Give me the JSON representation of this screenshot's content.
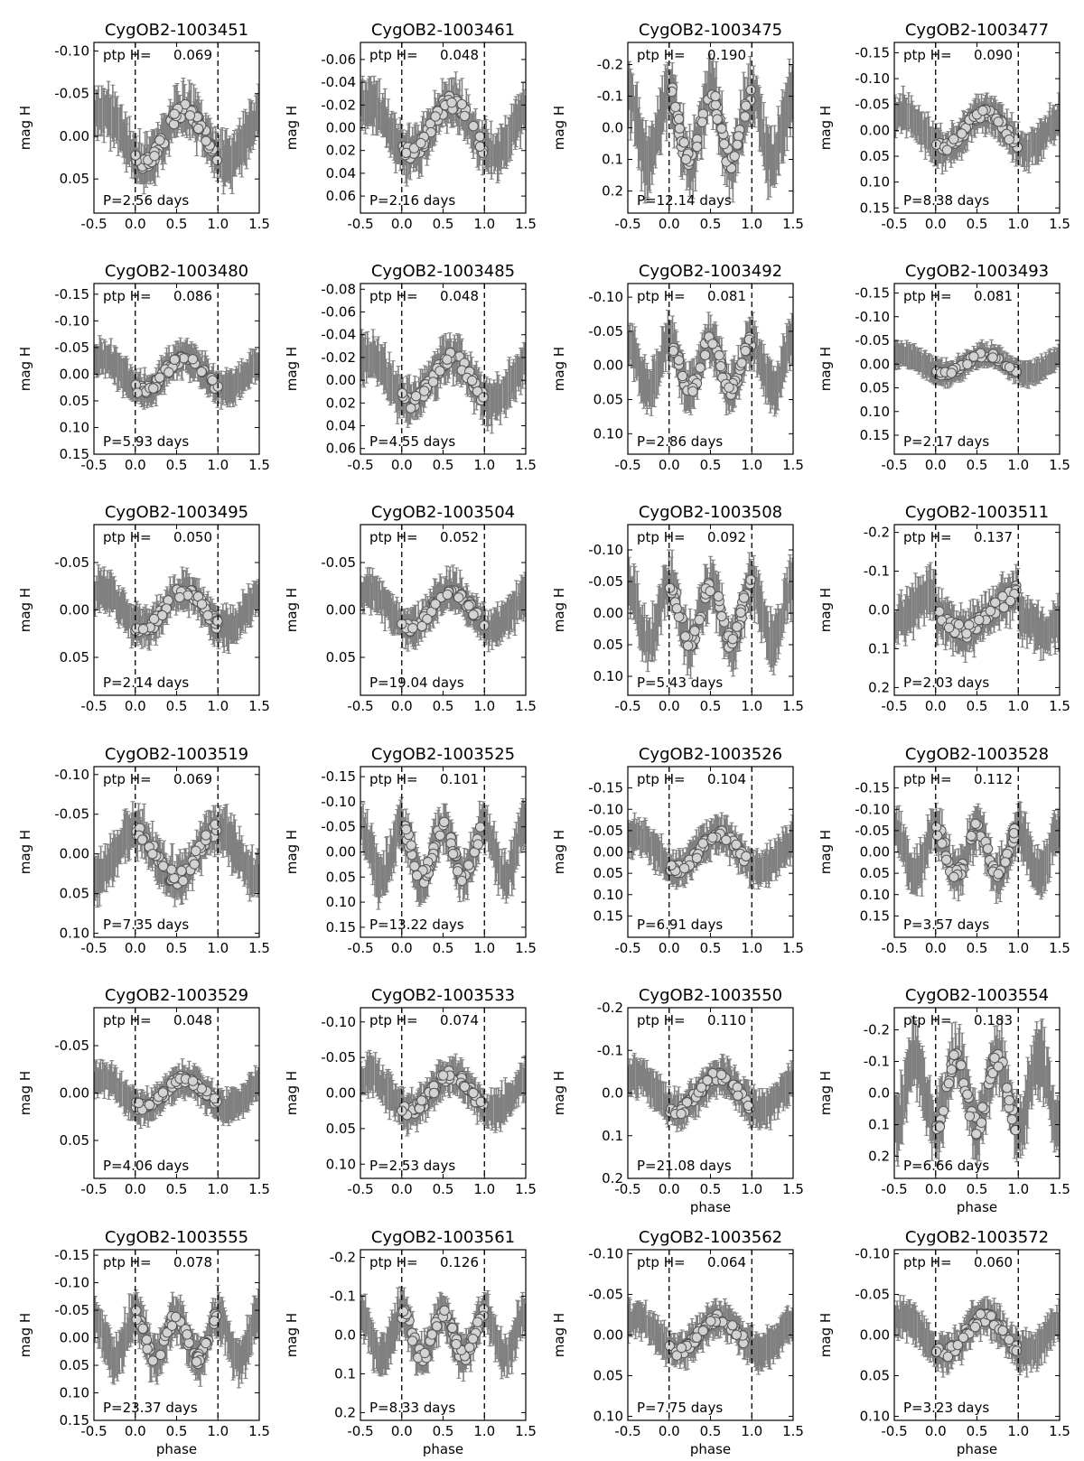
{
  "chart_data": [
    {
      "title": "CygOB2-1003451",
      "type": "scatter",
      "xlabel": "",
      "ylabel": "mag H",
      "ptp_label": "ptp H=",
      "ptp": "0.069",
      "period_label": "P=2.56 days",
      "ylim": [
        0.09,
        -0.11
      ],
      "yticks": [
        "-0.10",
        "-0.05",
        "0.00",
        "0.05"
      ],
      "ytick_values": [
        -0.1,
        -0.05,
        0.0,
        0.05
      ],
      "amplitude": 0.03,
      "shape": "sine1"
    },
    {
      "title": "CygOB2-1003461",
      "type": "scatter",
      "xlabel": "",
      "ylabel": "mag H",
      "ptp_label": "ptp H=",
      "ptp": "0.048",
      "period_label": "P=2.16 days",
      "ylim": [
        0.075,
        -0.075
      ],
      "yticks": [
        "-0.06",
        "-0.04",
        "-0.02",
        "0.00",
        "0.02",
        "0.04",
        "0.06"
      ],
      "ytick_values": [
        -0.06,
        -0.04,
        -0.02,
        0.0,
        0.02,
        0.04,
        0.06
      ],
      "amplitude": 0.022,
      "shape": "sine1"
    },
    {
      "title": "CygOB2-1003475",
      "type": "scatter",
      "xlabel": "",
      "ylabel": "mag H",
      "ptp_label": "ptp H=",
      "ptp": "0.190",
      "period_label": "P=12.14 days",
      "ylim": [
        0.27,
        -0.27
      ],
      "yticks": [
        "-0.2",
        "-0.1",
        "0.0",
        "0.1",
        "0.2"
      ],
      "ytick_values": [
        -0.2,
        -0.1,
        0.0,
        0.1,
        0.2
      ],
      "amplitude": 0.11,
      "shape": "eb"
    },
    {
      "title": "CygOB2-1003477",
      "type": "scatter",
      "xlabel": "",
      "ylabel": "mag H",
      "ptp_label": "ptp H=",
      "ptp": "0.090",
      "period_label": "P=8.38 days",
      "ylim": [
        0.16,
        -0.17
      ],
      "yticks": [
        "-0.15",
        "-0.10",
        "-0.05",
        "0.00",
        "0.05",
        "0.10",
        "0.15"
      ],
      "ytick_values": [
        -0.15,
        -0.1,
        -0.05,
        0.0,
        0.05,
        0.1,
        0.15
      ],
      "amplitude": 0.035,
      "shape": "sine1"
    },
    {
      "title": "CygOB2-1003480",
      "type": "scatter",
      "xlabel": "",
      "ylabel": "mag H",
      "ptp_label": "ptp H=",
      "ptp": "0.086",
      "period_label": "P=5.93 days",
      "ylim": [
        0.15,
        -0.17
      ],
      "yticks": [
        "-0.15",
        "-0.10",
        "-0.05",
        "0.00",
        "0.05",
        "0.10",
        "0.15"
      ],
      "ytick_values": [
        -0.15,
        -0.1,
        -0.05,
        0.0,
        0.05,
        0.1,
        0.15
      ],
      "amplitude": 0.03,
      "shape": "sine1"
    },
    {
      "title": "CygOB2-1003485",
      "type": "scatter",
      "xlabel": "",
      "ylabel": "mag H",
      "ptp_label": "ptp H=",
      "ptp": "0.048",
      "period_label": "P=4.55 days",
      "ylim": [
        0.065,
        -0.085
      ],
      "yticks": [
        "-0.08",
        "-0.06",
        "-0.04",
        "-0.02",
        "0.00",
        "0.02",
        "0.04",
        "0.06"
      ],
      "ytick_values": [
        -0.08,
        -0.06,
        -0.04,
        -0.02,
        0.0,
        0.02,
        0.04,
        0.06
      ],
      "amplitude": 0.02,
      "shape": "sine1"
    },
    {
      "title": "CygOB2-1003492",
      "type": "scatter",
      "xlabel": "",
      "ylabel": "mag H",
      "ptp_label": "ptp H=",
      "ptp": "0.081",
      "period_label": "P=2.86 days",
      "ylim": [
        0.13,
        -0.12
      ],
      "yticks": [
        "-0.10",
        "-0.05",
        "0.00",
        "0.05",
        "0.10"
      ],
      "ytick_values": [
        -0.1,
        -0.05,
        0.0,
        0.05,
        0.1
      ],
      "amplitude": 0.035,
      "shape": "eb"
    },
    {
      "title": "CygOB2-1003493",
      "type": "scatter",
      "xlabel": "",
      "ylabel": "mag H",
      "ptp_label": "ptp H=",
      "ptp": "0.081",
      "period_label": "P=2.17 days",
      "ylim": [
        0.19,
        -0.17
      ],
      "yticks": [
        "-0.15",
        "-0.10",
        "-0.05",
        "0.00",
        "0.05",
        "0.10",
        "0.15"
      ],
      "ytick_values": [
        -0.15,
        -0.1,
        -0.05,
        0.0,
        0.05,
        0.1,
        0.15
      ],
      "amplitude": 0.02,
      "shape": "sine1"
    },
    {
      "title": "CygOB2-1003495",
      "type": "scatter",
      "xlabel": "",
      "ylabel": "mag H",
      "ptp_label": "ptp H=",
      "ptp": "0.050",
      "period_label": "P=2.14 days",
      "ylim": [
        0.09,
        -0.09
      ],
      "yticks": [
        "-0.05",
        "0.00",
        "0.05"
      ],
      "ytick_values": [
        -0.05,
        0.0,
        0.05
      ],
      "amplitude": 0.02,
      "shape": "sine1"
    },
    {
      "title": "CygOB2-1003504",
      "type": "scatter",
      "xlabel": "",
      "ylabel": "mag H",
      "ptp_label": "ptp H=",
      "ptp": "0.052",
      "period_label": "P=19.04 days",
      "ylim": [
        0.09,
        -0.09
      ],
      "yticks": [
        "-0.05",
        "0.00",
        "0.05"
      ],
      "ytick_values": [
        -0.05,
        0.0,
        0.05
      ],
      "amplitude": 0.02,
      "shape": "sine1"
    },
    {
      "title": "CygOB2-1003508",
      "type": "scatter",
      "xlabel": "",
      "ylabel": "mag H",
      "ptp_label": "ptp H=",
      "ptp": "0.092",
      "period_label": "P=5.43 days",
      "ylim": [
        0.13,
        -0.14
      ],
      "yticks": [
        "-0.10",
        "-0.05",
        "0.00",
        "0.05",
        "0.10"
      ],
      "ytick_values": [
        -0.1,
        -0.05,
        0.0,
        0.05,
        0.1
      ],
      "amplitude": 0.045,
      "shape": "eb"
    },
    {
      "title": "CygOB2-1003511",
      "type": "scatter",
      "xlabel": "",
      "ylabel": "mag H",
      "ptp_label": "ptp H=",
      "ptp": "0.137",
      "period_label": "P=2.03 days",
      "ylim": [
        0.22,
        -0.22
      ],
      "yticks": [
        "-0.2",
        "-0.1",
        "0.0",
        "0.1",
        "0.2"
      ],
      "ytick_values": [
        -0.2,
        -0.1,
        0.0,
        0.1,
        0.2
      ],
      "amplitude": 0.06,
      "shape": "saw"
    },
    {
      "title": "CygOB2-1003519",
      "type": "scatter",
      "xlabel": "",
      "ylabel": "mag H",
      "ptp_label": "ptp H=",
      "ptp": "0.069",
      "period_label": "P=7.35 days",
      "ylim": [
        0.105,
        -0.11
      ],
      "yticks": [
        "-0.10",
        "-0.05",
        "0.00",
        "0.05",
        "0.10"
      ],
      "ytick_values": [
        -0.1,
        -0.05,
        0.0,
        0.05,
        0.1
      ],
      "amplitude": 0.03,
      "shape": "sine1inv"
    },
    {
      "title": "CygOB2-1003525",
      "type": "scatter",
      "xlabel": "",
      "ylabel": "mag H",
      "ptp_label": "ptp H=",
      "ptp": "0.101",
      "period_label": "P=13.22 days",
      "ylim": [
        0.17,
        -0.17
      ],
      "yticks": [
        "-0.15",
        "-0.10",
        "-0.05",
        "0.00",
        "0.05",
        "0.10",
        "0.15"
      ],
      "ytick_values": [
        -0.15,
        -0.1,
        -0.05,
        0.0,
        0.05,
        0.1,
        0.15
      ],
      "amplitude": 0.05,
      "shape": "eb"
    },
    {
      "title": "CygOB2-1003526",
      "type": "scatter",
      "xlabel": "",
      "ylabel": "mag H",
      "ptp_label": "ptp H=",
      "ptp": "0.104",
      "period_label": "P=6.91 days",
      "ylim": [
        0.2,
        -0.2
      ],
      "yticks": [
        "-0.15",
        "-0.10",
        "-0.05",
        "0.00",
        "0.05",
        "0.10",
        "0.15"
      ],
      "ytick_values": [
        -0.15,
        -0.1,
        -0.05,
        0.0,
        0.05,
        0.1,
        0.15
      ],
      "amplitude": 0.04,
      "shape": "sine1"
    },
    {
      "title": "CygOB2-1003528",
      "type": "scatter",
      "xlabel": "",
      "ylabel": "mag H",
      "ptp_label": "ptp H=",
      "ptp": "0.112",
      "period_label": "P=3.57 days",
      "ylim": [
        0.2,
        -0.2
      ],
      "yticks": [
        "-0.15",
        "-0.10",
        "-0.05",
        "0.00",
        "0.05",
        "0.10",
        "0.15"
      ],
      "ytick_values": [
        -0.15,
        -0.1,
        -0.05,
        0.0,
        0.05,
        0.1,
        0.15
      ],
      "amplitude": 0.055,
      "shape": "eb"
    },
    {
      "title": "CygOB2-1003529",
      "type": "scatter",
      "xlabel": "",
      "ylabel": "mag H",
      "ptp_label": "ptp H=",
      "ptp": "0.048",
      "period_label": "P=4.06 days",
      "ylim": [
        0.09,
        -0.09
      ],
      "yticks": [
        "-0.05",
        "0.00",
        "0.05"
      ],
      "ytick_values": [
        -0.05,
        0.0,
        0.05
      ],
      "amplitude": 0.015,
      "shape": "sine1"
    },
    {
      "title": "CygOB2-1003533",
      "type": "scatter",
      "xlabel": "",
      "ylabel": "mag H",
      "ptp_label": "ptp H=",
      "ptp": "0.074",
      "period_label": "P=2.53 days",
      "ylim": [
        0.12,
        -0.12
      ],
      "yticks": [
        "-0.10",
        "-0.05",
        "0.00",
        "0.05",
        "0.10"
      ],
      "ytick_values": [
        -0.1,
        -0.05,
        0.0,
        0.05,
        0.1
      ],
      "amplitude": 0.025,
      "shape": "sine1"
    },
    {
      "title": "CygOB2-1003550",
      "type": "scatter",
      "xlabel": "phase",
      "ylabel": "mag H",
      "ptp_label": "ptp H=",
      "ptp": "0.110",
      "period_label": "P=21.08 days",
      "ylim": [
        0.2,
        -0.2
      ],
      "yticks": [
        "-0.2",
        "-0.1",
        "0.0",
        "0.1",
        "0.2"
      ],
      "ytick_values": [
        -0.2,
        -0.1,
        0.0,
        0.1,
        0.2
      ],
      "amplitude": 0.04,
      "shape": "sine1"
    },
    {
      "title": "CygOB2-1003554",
      "type": "scatter",
      "xlabel": "phase",
      "ylabel": "mag H",
      "ptp_label": "ptp H=",
      "ptp": "0.183",
      "period_label": "P=6.66 days",
      "ylim": [
        0.27,
        -0.27
      ],
      "yticks": [
        "-0.2",
        "-0.1",
        "0.0",
        "0.1",
        "0.2"
      ],
      "ytick_values": [
        -0.2,
        -0.1,
        0.0,
        0.1,
        0.2
      ],
      "amplitude": 0.11,
      "shape": "eb2"
    },
    {
      "title": "CygOB2-1003555",
      "type": "scatter",
      "xlabel": "phase",
      "ylabel": "mag H",
      "ptp_label": "ptp H=",
      "ptp": "0.078",
      "period_label": "P=23.37 days",
      "ylim": [
        0.15,
        -0.16
      ],
      "yticks": [
        "-0.15",
        "-0.10",
        "-0.05",
        "0.00",
        "0.05",
        "0.10",
        "0.15"
      ],
      "ytick_values": [
        -0.15,
        -0.1,
        -0.05,
        0.0,
        0.05,
        0.1,
        0.15
      ],
      "amplitude": 0.04,
      "shape": "eb"
    },
    {
      "title": "CygOB2-1003561",
      "type": "scatter",
      "xlabel": "phase",
      "ylabel": "mag H",
      "ptp_label": "ptp H=",
      "ptp": "0.126",
      "period_label": "P=8.33 days",
      "ylim": [
        0.22,
        -0.22
      ],
      "yticks": [
        "-0.2",
        "-0.1",
        "0.0",
        "0.1",
        "0.2"
      ],
      "ytick_values": [
        -0.2,
        -0.1,
        0.0,
        0.1,
        0.2
      ],
      "amplitude": 0.055,
      "shape": "eb"
    },
    {
      "title": "CygOB2-1003562",
      "type": "scatter",
      "xlabel": "phase",
      "ylabel": "mag H",
      "ptp_label": "ptp H=",
      "ptp": "0.064",
      "period_label": "P=7.75 days",
      "ylim": [
        0.105,
        -0.105
      ],
      "yticks": [
        "-0.10",
        "-0.05",
        "0.00",
        "0.05",
        "0.10"
      ],
      "ytick_values": [
        -0.1,
        -0.05,
        0.0,
        0.05,
        0.1
      ],
      "amplitude": 0.02,
      "shape": "sine1"
    },
    {
      "title": "CygOB2-1003572",
      "type": "scatter",
      "xlabel": "phase",
      "ylabel": "mag H",
      "ptp_label": "ptp H=",
      "ptp": "0.060",
      "period_label": "P=3.23 days",
      "ylim": [
        0.105,
        -0.105
      ],
      "yticks": [
        "-0.10",
        "-0.05",
        "0.00",
        "0.05",
        "0.10"
      ],
      "ytick_values": [
        -0.1,
        -0.05,
        0.0,
        0.05,
        0.1
      ],
      "amplitude": 0.022,
      "shape": "sine1"
    }
  ],
  "x_axis": {
    "xlim": [
      -0.5,
      1.5
    ],
    "xticks": [
      "-0.5",
      "0.0",
      "0.5",
      "1.0",
      "1.5"
    ],
    "xtick_values": [
      -0.5,
      0.0,
      0.5,
      1.0,
      1.5
    ],
    "dashed_lines_at": [
      0.0,
      1.0
    ]
  },
  "colors": {
    "errorbars": "#808080",
    "markers_fill": "#d3d3d3",
    "markers_edge": "#555555",
    "axes": "#000000"
  }
}
